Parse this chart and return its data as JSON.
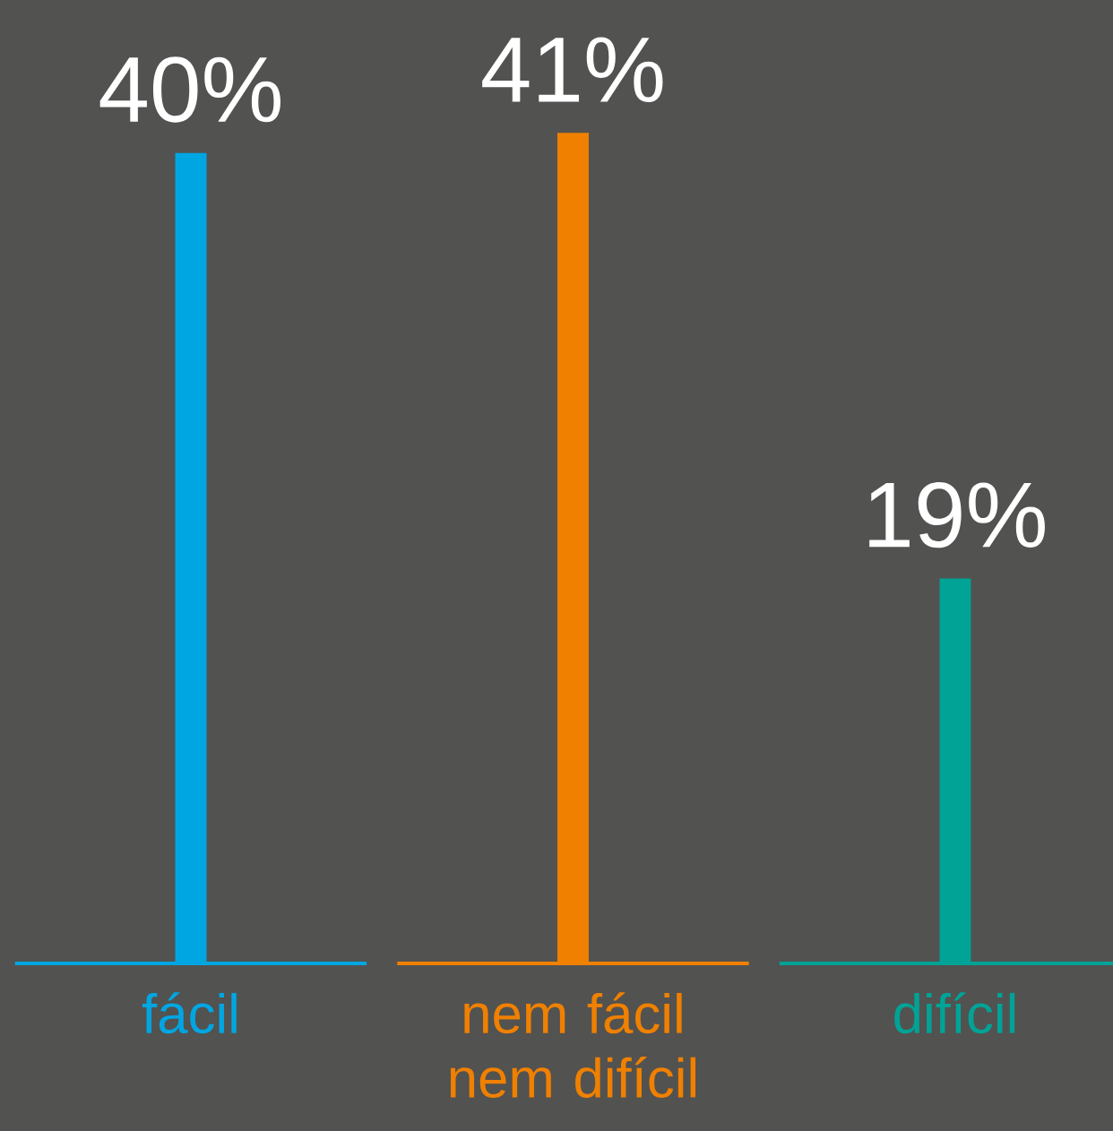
{
  "chart_data": {
    "type": "bar",
    "categories": [
      "fácil",
      "nem fácil nem difícil",
      "difícil"
    ],
    "values": [
      40,
      41,
      19
    ],
    "colors": [
      "#00a6e2",
      "#f08000",
      "#00a396"
    ],
    "value_labels": [
      "40%",
      "41%",
      "19%"
    ],
    "ref_lines": [
      {
        "axis": "y",
        "value": 0,
        "color": "#00a6e2"
      },
      {
        "axis": "y",
        "value": 0,
        "color": "#f08000"
      },
      {
        "axis": "y",
        "value": 0,
        "color": "#00a396"
      }
    ]
  }
}
